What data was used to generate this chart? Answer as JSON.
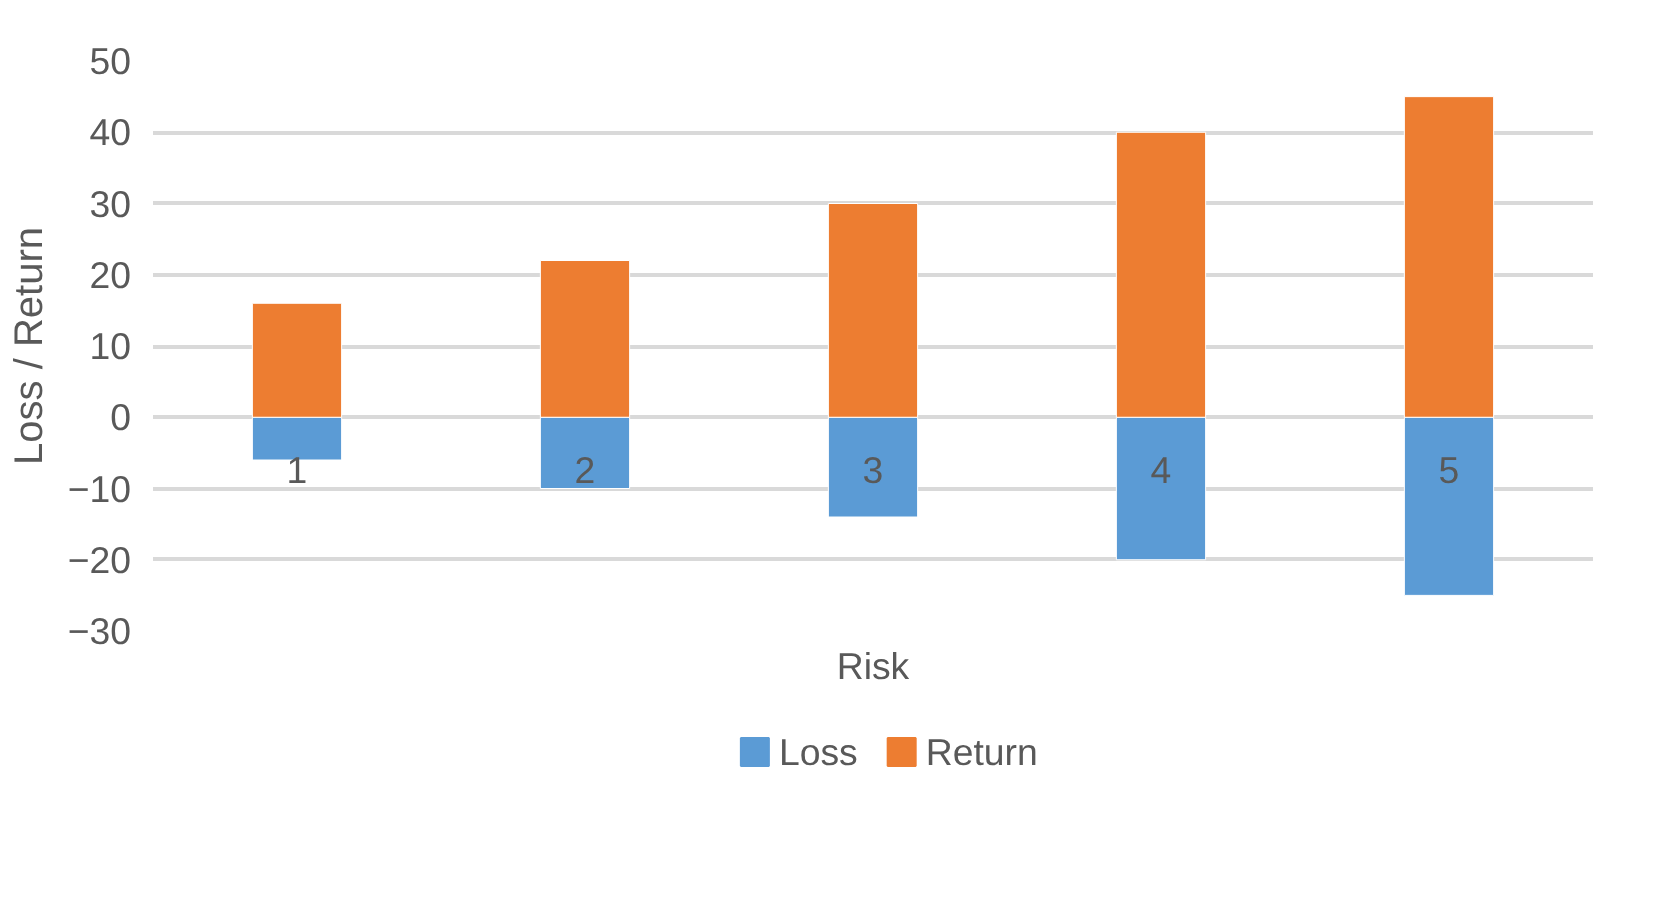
{
  "chart_data": {
    "type": "bar",
    "stacked": true,
    "xlabel": "Risk",
    "ylabel": "Loss / Return",
    "categories": [
      "1",
      "2",
      "3",
      "4",
      "5"
    ],
    "series": [
      {
        "name": "Loss",
        "color": "#5b9bd5",
        "values": [
          -6,
          -10,
          -14,
          -20,
          -25
        ]
      },
      {
        "name": "Return",
        "color": "#ed7d31",
        "values": [
          16,
          22,
          30,
          40,
          45
        ]
      }
    ],
    "ylim": [
      -30,
      50
    ],
    "yticks": [
      -30,
      -20,
      -10,
      0,
      10,
      20,
      30,
      40,
      50
    ],
    "grid": "y",
    "legend": "bottom"
  }
}
